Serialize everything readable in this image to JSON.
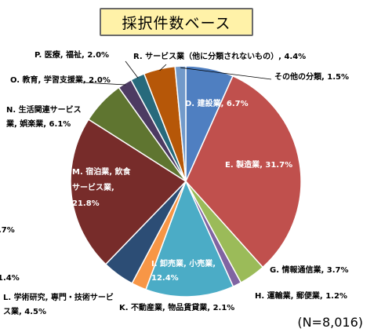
{
  "title": "採択件数ベース",
  "note": "(N=8,016)",
  "chart_data": {
    "type": "pie",
    "title": "採択件数ベース",
    "slices": [
      {
        "label": "D. 建設業, 6.7%",
        "value": 6.7,
        "color": "#4f7fc1"
      },
      {
        "label": "E. 製造業, 31.7%",
        "value": 31.7,
        "color": "#c0504d"
      },
      {
        "label": "G. 情報通信業, 3.7%",
        "value": 3.7,
        "color": "#9bbb59"
      },
      {
        "label": "H. 運輸業, 郵便業, 1.2%",
        "value": 1.2,
        "color": "#8064a2"
      },
      {
        "label": "I. 卸売業, 小売業, 12.4%",
        "value": 12.4,
        "color": "#4bacc6"
      },
      {
        "label": "K. 不動産業, 物品賃貸業, 2.1%",
        "value": 2.1,
        "color": "#f79646"
      },
      {
        "label": "L. 学術研究, 専門・技術サービス業, 4.5%",
        "value": 4.5,
        "color": "#2c4d75"
      },
      {
        "label": "M. 宿泊業, 飲食サービス業, 21.8%",
        "value": 21.8,
        "color": "#772c2a"
      },
      {
        "label": "N. 生活関連サービス業, 娯楽業, 6.1%",
        "value": 6.1,
        "color": "#5f7530"
      },
      {
        "label": "O. 教育, 学習支援業, 2.0%",
        "value": 2.0,
        "color": "#4d3b62"
      },
      {
        "label": "P. 医療, 福祉, 2.0%",
        "value": 2.0,
        "color": "#276a7c"
      },
      {
        "label": "R. サービス業（他に分類されないもの）, 4.4%",
        "value": 4.4,
        "color": "#b65708"
      },
      {
        "label": "その他の分類, 1.5%",
        "value": 1.5,
        "color": "#729aca"
      }
    ],
    "label_lines": [
      [
        "D. 建設業, 6.7%"
      ],
      [
        "E. 製造業, 31.7%"
      ],
      [
        "G. 情報通信業, 3.7%"
      ],
      [
        "H. 運輸業, 郵便業, 1.2%"
      ],
      [
        "I. 卸売業, 小売業,",
        "12.4%"
      ],
      [
        "K. 不動産業, 物品賃貸業, 2.1%"
      ],
      [
        "L. 学術研究, 専門・技術サービ",
        "ス業, 4.5%"
      ],
      [
        "M. 宿泊業, 飲食",
        "サービス業,",
        "21.8%"
      ],
      [
        "N. 生活関連サービス",
        "業, 娯楽業, 6.1%"
      ],
      [
        "O. 教育, 学習支援業, 2.0%"
      ],
      [
        "P. 医療, 福祉, 2.0%"
      ],
      [
        "R. サービス業（他に分類されないもの）, 4.4%"
      ],
      [
        "その他の分類, 1.5%"
      ]
    ],
    "edge_fragments": [
      ".7%",
      "1.4%"
    ]
  }
}
